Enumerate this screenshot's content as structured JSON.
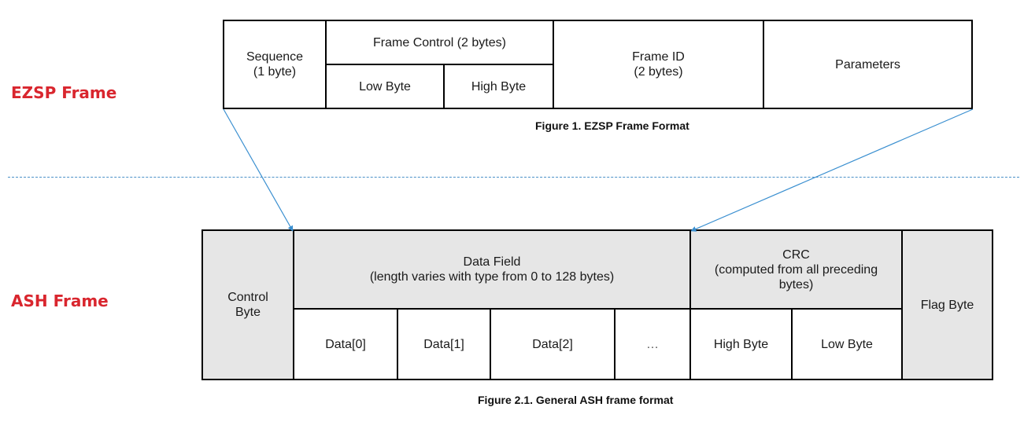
{
  "labels": {
    "ezsp": "EZSP Frame",
    "ash": "ASH Frame"
  },
  "ezsp_frame": {
    "sequence": "Sequence\n(1 byte)",
    "frame_control": "Frame Control (2 bytes)",
    "fc_low": "Low Byte",
    "fc_high": "High Byte",
    "frame_id": "Frame ID\n(2 bytes)",
    "parameters": "Parameters",
    "caption": "Figure 1. EZSP Frame Format"
  },
  "ash_frame": {
    "control_byte": "Control\nByte",
    "data_field": "Data Field\n(length varies with type from 0 to 128 bytes)",
    "data_cells": [
      "Data[0]",
      "Data[1]",
      "Data[2]",
      "…"
    ],
    "crc": "CRC\n(computed from all preceding\nbytes)",
    "crc_high": "High Byte",
    "crc_low": "Low Byte",
    "flag_byte": "Flag Byte",
    "caption": "Figure 2.1.  General ASH frame format"
  },
  "colors": {
    "label_red": "#d9262e",
    "arrow_blue": "#3a8fd0",
    "shade_gray": "#e6e6e6"
  }
}
